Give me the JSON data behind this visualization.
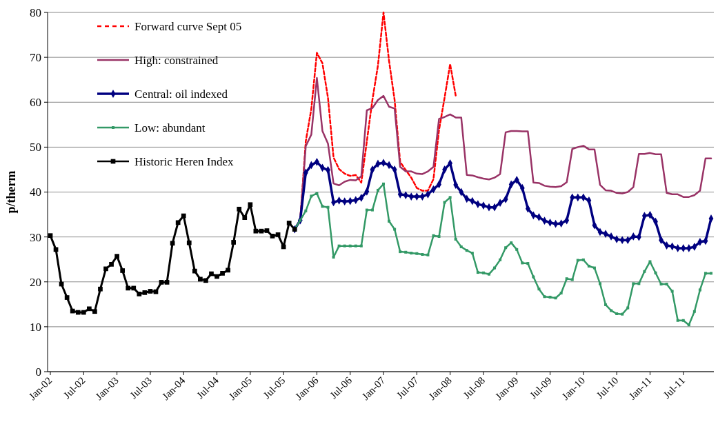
{
  "chart_data": {
    "type": "line",
    "ylabel": "p/therm",
    "ylim": [
      0,
      80
    ],
    "yticks": [
      0,
      10,
      20,
      30,
      40,
      50,
      60,
      70,
      80
    ],
    "grid": "y",
    "legend": "top left",
    "categories": [
      "Jan-02",
      null,
      null,
      null,
      null,
      null,
      "Jul-02",
      null,
      null,
      null,
      null,
      null,
      "Jan-03",
      null,
      null,
      null,
      null,
      null,
      "Jul-03",
      null,
      null,
      null,
      null,
      null,
      "Jan-04",
      null,
      null,
      null,
      null,
      null,
      "Jul-04",
      null,
      null,
      null,
      null,
      null,
      "Jan-05",
      null,
      null,
      null,
      null,
      null,
      "Jul-05",
      null,
      null,
      null,
      null,
      null,
      "Jan-06",
      null,
      null,
      null,
      null,
      null,
      "Jul-06",
      null,
      null,
      null,
      null,
      null,
      "Jan-07",
      null,
      null,
      null,
      null,
      null,
      "Jul-07",
      null,
      null,
      null,
      null,
      null,
      "Jan-08",
      null,
      null,
      null,
      null,
      null,
      "Jul-08",
      null,
      null,
      null,
      null,
      null,
      "Jan-09",
      null,
      null,
      null,
      null,
      null,
      "Jul-09",
      null,
      null,
      null,
      null,
      null,
      "Jan-10",
      null,
      null,
      null,
      null,
      null,
      "Jul-10",
      null,
      null,
      null,
      null,
      null,
      "Jan-11",
      null,
      null,
      null,
      null,
      null,
      "Jul-11",
      null,
      null,
      null,
      null,
      null
    ],
    "series": [
      {
        "name": "Forward curve Sept 05",
        "color": "#ff0000",
        "line_style": "dashed",
        "marker": "none",
        "values": [
          null,
          null,
          null,
          null,
          null,
          null,
          null,
          null,
          null,
          null,
          null,
          null,
          null,
          null,
          null,
          null,
          null,
          null,
          null,
          null,
          null,
          null,
          null,
          null,
          null,
          null,
          null,
          null,
          null,
          null,
          null,
          null,
          null,
          null,
          null,
          null,
          null,
          null,
          null,
          null,
          null,
          null,
          null,
          null,
          31.7,
          33.7,
          51.3,
          58.5,
          71.0,
          68.7,
          61.0,
          47.7,
          45.1,
          44.1,
          43.6,
          43.8,
          42.1,
          51.3,
          60.5,
          68.2,
          80.0,
          69.2,
          60.5,
          46.7,
          44.9,
          43.2,
          40.9,
          40.3,
          40.3,
          42.9,
          53.8,
          61.0,
          68.5,
          61.5,
          null,
          null,
          null,
          null,
          null,
          null,
          null,
          null,
          null,
          null,
          null,
          null,
          null,
          null,
          null,
          null,
          null,
          null,
          null,
          null,
          null,
          null,
          null,
          null,
          null,
          null,
          null,
          null,
          null,
          null,
          null,
          null,
          null,
          null,
          null,
          null,
          null,
          null,
          null,
          null,
          null,
          null,
          null,
          null,
          null,
          null
        ]
      },
      {
        "name": "High: constrained",
        "color": "#993366",
        "line_style": "solid",
        "marker": "none",
        "values": [
          null,
          null,
          null,
          null,
          null,
          null,
          null,
          null,
          null,
          null,
          null,
          null,
          null,
          null,
          null,
          null,
          null,
          null,
          null,
          null,
          null,
          null,
          null,
          null,
          null,
          null,
          null,
          null,
          null,
          null,
          null,
          null,
          null,
          null,
          null,
          null,
          null,
          null,
          null,
          null,
          null,
          null,
          null,
          null,
          31.7,
          33.7,
          50.2,
          52.8,
          65.4,
          53.6,
          50.8,
          41.9,
          41.5,
          42.3,
          42.7,
          42.6,
          43.5,
          58.2,
          58.7,
          60.5,
          61.4,
          59.0,
          58.6,
          45.6,
          44.6,
          44.6,
          44.1,
          44.0,
          44.6,
          45.6,
          56.3,
          56.7,
          57.3,
          56.6,
          56.6,
          43.8,
          43.7,
          43.3,
          43.0,
          42.8,
          43.2,
          44.0,
          53.3,
          53.6,
          53.6,
          53.5,
          53.5,
          42.1,
          42.0,
          41.4,
          41.2,
          41.1,
          41.3,
          42.2,
          49.6,
          50.0,
          50.3,
          49.5,
          49.5,
          41.6,
          40.4,
          40.3,
          39.8,
          39.7,
          40.0,
          41.1,
          48.5,
          48.5,
          48.7,
          48.4,
          48.4,
          39.8,
          39.5,
          39.5,
          38.9,
          38.9,
          39.3,
          40.3,
          47.5,
          47.5
        ]
      },
      {
        "name": "Central: oil indexed",
        "color": "#000080",
        "line_style": "solid",
        "marker": "diamond",
        "values": [
          null,
          null,
          null,
          null,
          null,
          null,
          null,
          null,
          null,
          null,
          null,
          null,
          null,
          null,
          null,
          null,
          null,
          null,
          null,
          null,
          null,
          null,
          null,
          null,
          null,
          null,
          null,
          null,
          null,
          null,
          null,
          null,
          null,
          null,
          null,
          null,
          null,
          null,
          null,
          null,
          null,
          null,
          null,
          null,
          31.7,
          33.7,
          44.3,
          46.0,
          46.7,
          45.4,
          44.9,
          37.7,
          38.1,
          37.9,
          38.0,
          38.2,
          38.7,
          40.1,
          45.0,
          46.3,
          46.5,
          46.0,
          45.0,
          39.5,
          39.3,
          39.0,
          39.0,
          39.0,
          39.5,
          40.6,
          41.7,
          45.0,
          46.4,
          41.6,
          40.0,
          38.5,
          38.0,
          37.3,
          37.0,
          36.6,
          36.6,
          37.6,
          38.4,
          41.7,
          42.7,
          40.9,
          36.3,
          34.8,
          34.4,
          33.6,
          33.2,
          32.9,
          33.0,
          33.7,
          38.8,
          38.8,
          38.8,
          38.1,
          32.6,
          31.1,
          30.7,
          30.1,
          29.5,
          29.3,
          29.3,
          30.1,
          30.0,
          34.7,
          34.9,
          33.4,
          29.3,
          28.1,
          27.9,
          27.5,
          27.5,
          27.5,
          27.8,
          28.9,
          29.1,
          34.1
        ]
      },
      {
        "name": "Low: abundant",
        "color": "#339966",
        "line_style": "solid",
        "marker": "square",
        "values": [
          null,
          null,
          null,
          null,
          null,
          null,
          null,
          null,
          null,
          null,
          null,
          null,
          null,
          null,
          null,
          null,
          null,
          null,
          null,
          null,
          null,
          null,
          null,
          null,
          null,
          null,
          null,
          null,
          null,
          null,
          null,
          null,
          null,
          null,
          null,
          null,
          null,
          null,
          null,
          null,
          null,
          null,
          null,
          null,
          31.7,
          33.7,
          35.8,
          39.1,
          39.7,
          36.8,
          36.6,
          25.5,
          28.0,
          28.0,
          28.0,
          28.0,
          28.0,
          36.0,
          36.0,
          40.4,
          41.8,
          33.5,
          31.7,
          26.7,
          26.6,
          26.4,
          26.3,
          26.1,
          26.0,
          30.3,
          30.1,
          37.7,
          38.8,
          29.5,
          27.8,
          27.0,
          26.4,
          22.1,
          22.0,
          21.7,
          23.1,
          24.9,
          27.6,
          28.7,
          27.2,
          24.2,
          24.1,
          21.1,
          18.4,
          16.7,
          16.6,
          16.4,
          17.5,
          20.7,
          20.5,
          24.8,
          24.9,
          23.5,
          23.1,
          19.6,
          14.9,
          13.6,
          12.9,
          12.8,
          14.2,
          19.6,
          19.6,
          22.3,
          24.5,
          22.0,
          19.5,
          19.5,
          17.9,
          11.4,
          11.4,
          10.4,
          13.4,
          18.2,
          21.9,
          21.9
        ]
      },
      {
        "name": "Historic Heren Index",
        "color": "#000000",
        "line_style": "solid",
        "marker": "square",
        "values": [
          30.3,
          27.2,
          19.5,
          16.5,
          13.5,
          13.2,
          13.2,
          14.0,
          13.4,
          18.4,
          22.9,
          23.9,
          25.7,
          22.5,
          18.6,
          18.6,
          17.3,
          17.6,
          17.9,
          17.8,
          19.9,
          19.9,
          28.6,
          33.2,
          34.7,
          28.7,
          22.4,
          20.6,
          20.3,
          21.8,
          21.2,
          21.9,
          22.6,
          28.8,
          36.2,
          34.3,
          37.2,
          31.3,
          31.3,
          31.4,
          30.2,
          30.5,
          27.8,
          33.1,
          31.7,
          null,
          null,
          null,
          null,
          null,
          null,
          null,
          null,
          null,
          null,
          null,
          null,
          null,
          null,
          null,
          null,
          null,
          null,
          null,
          null,
          null,
          null,
          null,
          null,
          null,
          null,
          null,
          null,
          null,
          null,
          null,
          null,
          null,
          null,
          null,
          null,
          null,
          null,
          null,
          null,
          null,
          null,
          null,
          null,
          null,
          null,
          null,
          null,
          null,
          null,
          null,
          null,
          null,
          null,
          null,
          null,
          null,
          null,
          null,
          null,
          null,
          null,
          null,
          null,
          null,
          null,
          null,
          null,
          null,
          null,
          null,
          null,
          null,
          null,
          null
        ]
      }
    ]
  }
}
